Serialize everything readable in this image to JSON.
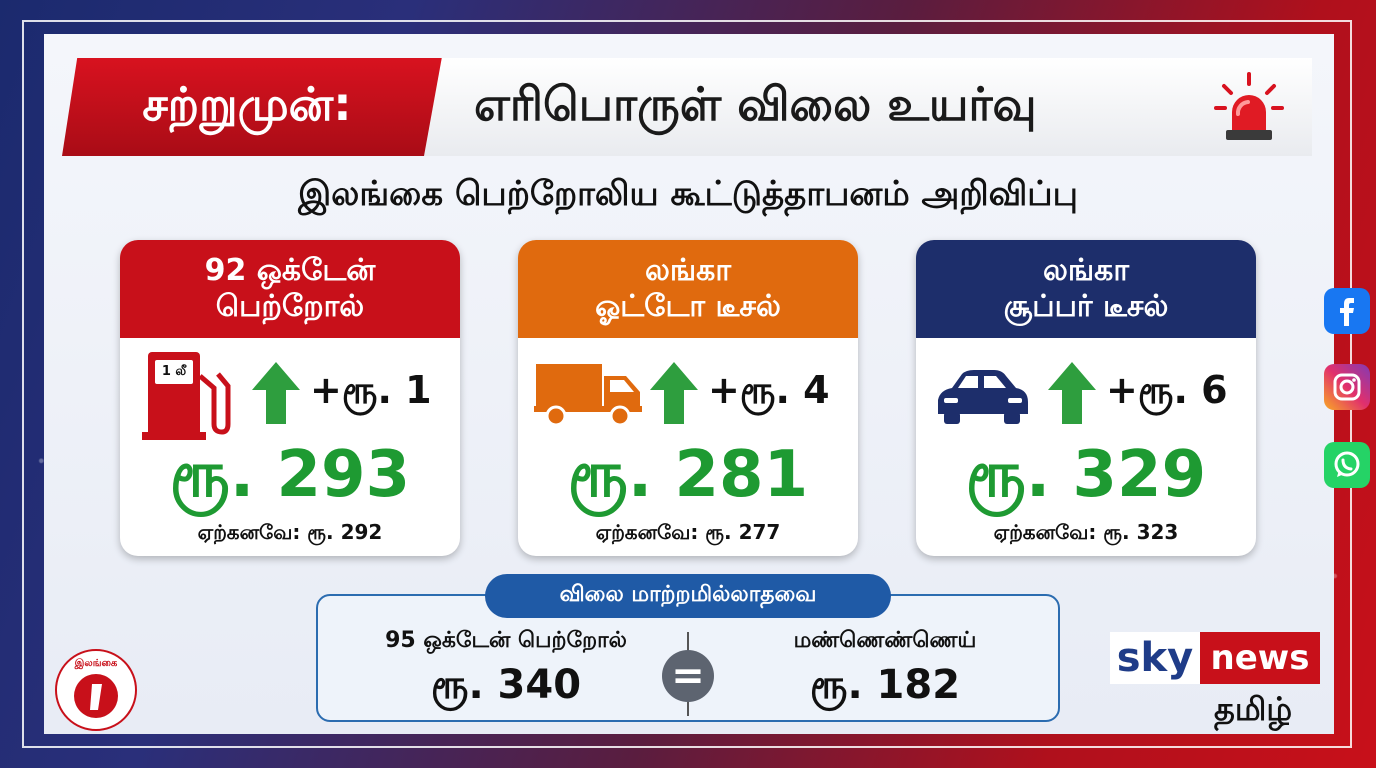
{
  "headline": {
    "tag": "சற்றுமுன்:",
    "title": "எரிபொருள் விலை உயர்வு"
  },
  "subtitle": "இலங்கை பெற்றோலிய கூட்டுத்தாபனம் அறிவிப்பு",
  "cards": [
    {
      "name_line1": "92 ஒக்டேன்",
      "name_line2": "பெற்றோல்",
      "increase": "+ரூ. 1",
      "price": "ரூ. 293",
      "previous": "ஏற்கனவே: ரூ. 292",
      "header_color": "#c8101a",
      "icon": "fuel-pump-icon",
      "pump_label": "1 லீ"
    },
    {
      "name_line1": "லங்கா",
      "name_line2": "ஓட்டோ டீசல்",
      "increase": "+ரூ. 4",
      "price": "ரூ. 281",
      "previous": "ஏற்கனவே: ரூ. 277",
      "header_color": "#e06a0e",
      "icon": "truck-icon"
    },
    {
      "name_line1": "லங்கா",
      "name_line2": "சூப்பர் டீசல்",
      "increase": "+ரூ. 6",
      "price": "ரூ. 329",
      "previous": "ஏற்கனவே: ரூ. 323",
      "header_color": "#1d2e6b",
      "icon": "car-icon"
    }
  ],
  "unchanged": {
    "label": "விலை மாற்றமில்லாதவை",
    "items": [
      {
        "name": "95 ஒக்டேன் பெற்றோல்",
        "price": "ரூ. 340"
      },
      {
        "name": "மண்ணெண்ணெய்",
        "price": "ரூ. 182"
      }
    ],
    "separator": "="
  },
  "brand": {
    "sky": "sky",
    "news": "news",
    "tamil": "தமிழ்",
    "cpc_label": "இலங்கை"
  },
  "colors": {
    "accent_red": "#c8101a",
    "price_green": "#1e9a32",
    "arrow_green": "#2e9e3e",
    "unchanged_blue": "#1f5aa6"
  },
  "social": [
    "facebook-icon",
    "instagram-icon",
    "whatsapp-icon"
  ]
}
